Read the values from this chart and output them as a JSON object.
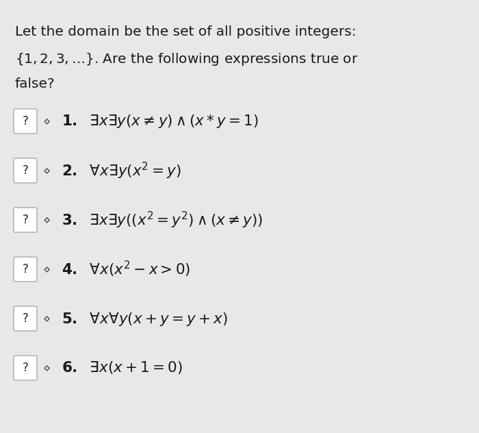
{
  "background_color": "#e8e8e8",
  "header_text_line1": "Let the domain be the set of all positive integers:",
  "header_text_line2": "$\\{1, 2, 3, \\ldots\\}$. Are the following expressions true or",
  "header_text_line3": "false?",
  "items": [
    {
      "number": "1.",
      "formula": "$\\exists x \\exists y(x \\neq y) \\wedge (x * y = 1)$"
    },
    {
      "number": "2.",
      "formula": "$\\forall x \\exists y(x^2 = y)$"
    },
    {
      "number": "3.",
      "formula": "$\\exists x \\exists y((x^2 = y^2) \\wedge (x \\neq y))$"
    },
    {
      "number": "4.",
      "formula": "$\\forall x(x^2 - x > 0)$"
    },
    {
      "number": "5.",
      "formula": "$\\forall x \\forall y(x + y = y + x)$"
    },
    {
      "number": "6.",
      "formula": "$\\exists x(x + 1 = 0)$"
    }
  ],
  "question_box_color": "#ffffff",
  "question_box_text": "?",
  "text_color": "#1a1a1a",
  "header_fontsize": 14.5,
  "item_fontsize": 15.5,
  "number_fontsize": 15.5
}
